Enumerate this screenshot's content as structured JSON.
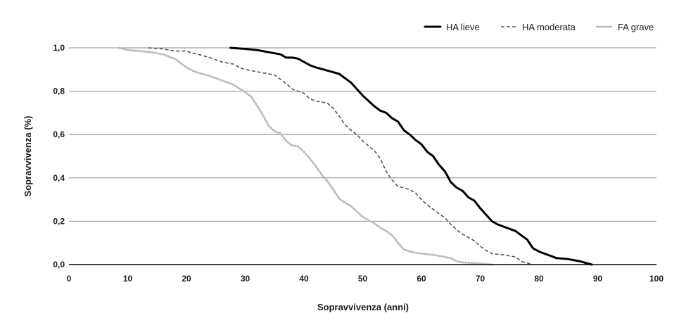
{
  "chart_data": {
    "type": "line",
    "title": "",
    "xlabel": "Sopravvivenza (anni)",
    "ylabel": "Sopravvivenza (%)",
    "xlim": [
      0,
      100
    ],
    "ylim": [
      0,
      1
    ],
    "x_ticks": [
      "0",
      "10",
      "20",
      "30",
      "40",
      "50",
      "60",
      "70",
      "80",
      "90",
      "100"
    ],
    "y_ticks": [
      "0,0",
      "0,2",
      "0,4",
      "0,6",
      "0,8",
      "1,0"
    ],
    "grid": "horizontal",
    "legend_position": "top-right",
    "series": [
      {
        "name": "HA lieve",
        "style": "solid",
        "color": "#000000",
        "x": [
          27.5,
          30,
          32,
          34,
          35,
          36,
          37,
          38,
          39,
          40,
          41,
          42,
          44,
          46,
          48,
          50,
          52,
          53,
          54,
          55,
          56,
          57,
          58,
          59,
          60,
          61,
          62,
          63,
          64,
          65,
          66,
          67,
          68,
          69,
          70,
          71,
          72,
          73,
          74,
          76,
          78,
          79,
          80,
          82,
          83,
          85,
          87,
          89
        ],
        "y": [
          1.0,
          0.995,
          0.99,
          0.98,
          0.975,
          0.97,
          0.955,
          0.955,
          0.95,
          0.935,
          0.92,
          0.91,
          0.895,
          0.88,
          0.84,
          0.78,
          0.73,
          0.71,
          0.7,
          0.675,
          0.66,
          0.62,
          0.6,
          0.575,
          0.555,
          0.52,
          0.5,
          0.46,
          0.43,
          0.38,
          0.355,
          0.34,
          0.31,
          0.295,
          0.26,
          0.23,
          0.2,
          0.185,
          0.175,
          0.155,
          0.115,
          0.075,
          0.06,
          0.04,
          0.03,
          0.025,
          0.015,
          0.0
        ]
      },
      {
        "name": "HA moderata",
        "style": "dashed",
        "color": "#555555",
        "x": [
          13.5,
          16,
          18,
          20,
          21,
          22,
          24,
          26,
          28,
          29,
          30,
          32,
          34,
          35,
          36,
          37,
          38,
          39,
          40,
          41,
          42,
          44,
          45,
          46,
          47,
          48,
          49,
          50,
          52,
          53,
          54,
          55,
          56,
          57,
          58,
          59,
          60,
          61,
          62,
          63,
          64,
          65,
          66,
          67,
          68,
          69,
          70,
          71,
          72,
          74,
          75,
          76,
          77,
          79
        ],
        "y": [
          1.0,
          0.995,
          0.985,
          0.985,
          0.975,
          0.97,
          0.955,
          0.935,
          0.925,
          0.91,
          0.9,
          0.89,
          0.88,
          0.875,
          0.855,
          0.835,
          0.81,
          0.8,
          0.79,
          0.765,
          0.755,
          0.745,
          0.72,
          0.685,
          0.645,
          0.62,
          0.6,
          0.57,
          0.525,
          0.49,
          0.43,
          0.39,
          0.36,
          0.355,
          0.345,
          0.33,
          0.3,
          0.275,
          0.255,
          0.235,
          0.215,
          0.185,
          0.16,
          0.14,
          0.125,
          0.11,
          0.085,
          0.065,
          0.05,
          0.045,
          0.04,
          0.035,
          0.015,
          0.0
        ]
      },
      {
        "name": "FA grave",
        "style": "dotted",
        "color": "#bbbbbb",
        "x": [
          8.5,
          10,
          12,
          14,
          16,
          17,
          18,
          19,
          20,
          21,
          22,
          24,
          26,
          28,
          30,
          31,
          32,
          33,
          34,
          35,
          36,
          37,
          38,
          39,
          40,
          41,
          42,
          43,
          44,
          45,
          46,
          47,
          48,
          49,
          50,
          51,
          52,
          53,
          54,
          55,
          56,
          57,
          58,
          60,
          62,
          63,
          64,
          65,
          66,
          67,
          68,
          70,
          72
        ],
        "y": [
          1.0,
          0.99,
          0.985,
          0.98,
          0.97,
          0.96,
          0.95,
          0.93,
          0.91,
          0.895,
          0.885,
          0.87,
          0.85,
          0.83,
          0.795,
          0.775,
          0.735,
          0.69,
          0.64,
          0.615,
          0.605,
          0.57,
          0.55,
          0.545,
          0.52,
          0.49,
          0.455,
          0.415,
          0.385,
          0.345,
          0.305,
          0.285,
          0.27,
          0.245,
          0.22,
          0.205,
          0.19,
          0.17,
          0.155,
          0.135,
          0.1,
          0.07,
          0.06,
          0.05,
          0.045,
          0.04,
          0.035,
          0.03,
          0.015,
          0.01,
          0.008,
          0.005,
          0.0
        ]
      }
    ]
  }
}
